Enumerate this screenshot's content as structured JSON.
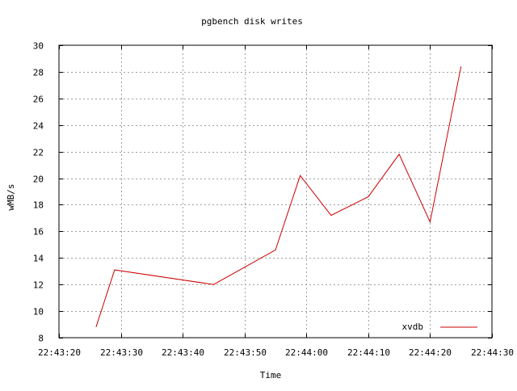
{
  "chart_data": {
    "type": "line",
    "title": "pgbench disk writes",
    "xlabel": "Time",
    "ylabel": "wMB/s",
    "x_ticks": [
      "22:43:20",
      "22:43:30",
      "22:43:40",
      "22:43:50",
      "22:44:00",
      "22:44:10",
      "22:44:20",
      "22:44:30"
    ],
    "y_ticks": [
      "8",
      "10",
      "12",
      "14",
      "16",
      "18",
      "20",
      "22",
      "24",
      "26",
      "28",
      "30"
    ],
    "xlim": [
      "22:43:20",
      "22:44:30"
    ],
    "ylim": [
      8,
      30
    ],
    "grid": true,
    "legend_position": "bottom-right",
    "series": [
      {
        "name": "xvdb",
        "color": "#cc0000",
        "x": [
          "22:43:26",
          "22:43:29",
          "22:43:45",
          "22:43:50",
          "22:43:55",
          "22:43:59",
          "22:44:04",
          "22:44:10",
          "22:44:15",
          "22:44:20",
          "22:44:25"
        ],
        "y": [
          8.8,
          13.1,
          12.0,
          13.3,
          14.6,
          20.2,
          17.2,
          18.6,
          21.8,
          16.7,
          28.4
        ]
      }
    ]
  }
}
